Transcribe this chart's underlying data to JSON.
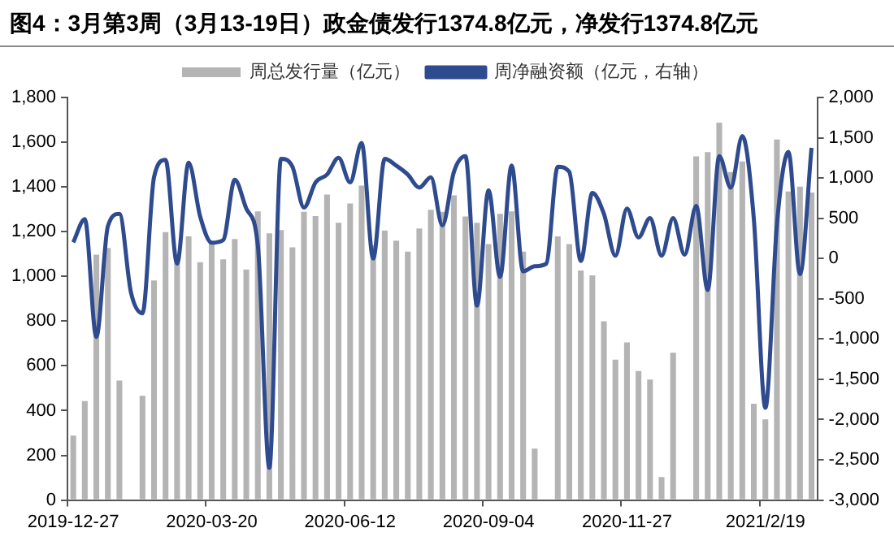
{
  "chart_data": {
    "type": "bar",
    "title": "图4：3月第3周（3月13-19日）政金债发行1374.8亿元，净发行1374.8亿元",
    "categories": [
      "2019-12-27",
      null,
      null,
      null,
      null,
      null,
      null,
      null,
      null,
      null,
      null,
      null,
      "2020-03-20",
      null,
      null,
      null,
      null,
      null,
      null,
      null,
      null,
      null,
      null,
      null,
      "2020-06-12",
      null,
      null,
      null,
      null,
      null,
      null,
      null,
      null,
      null,
      null,
      null,
      "2020-09-04",
      null,
      null,
      null,
      null,
      null,
      null,
      null,
      null,
      null,
      null,
      null,
      "2020-11-27",
      null,
      null,
      null,
      null,
      null,
      null,
      null,
      null,
      null,
      null,
      null,
      "2021/2/19",
      null,
      null,
      null,
      null
    ],
    "series": [
      {
        "name": "周总发行量（亿元）",
        "color": "#b4b4b4",
        "values": [
          288,
          443,
          1097,
          1127,
          534,
          0,
          466,
          982,
          1198,
          1060,
          1179,
          1064,
          1151,
          1076,
          1167,
          1031,
          1291,
          1193,
          1207,
          1130,
          1289,
          1270,
          1366,
          1240,
          1326,
          1406,
          1139,
          1205,
          1160,
          1111,
          1214,
          1298,
          1289,
          1362,
          1268,
          1240,
          1144,
          1280,
          1291,
          1111,
          230,
          0,
          1179,
          1144,
          1026,
          1005,
          799,
          628,
          705,
          577,
          539,
          103,
          659,
          0,
          1537,
          1556,
          1687,
          1467,
          1514,
          431,
          361,
          1612,
          1380,
          1401,
          1375
        ]
      },
      {
        "name": "周净融资额（亿元，右轴）",
        "type": "line",
        "axis": "y2",
        "color": "#2f4b8f",
        "values": [
          200,
          490,
          -975,
          400,
          555,
          -420,
          -680,
          1010,
          1225,
          -64,
          1190,
          522,
          197,
          230,
          978,
          620,
          164,
          -2600,
          1238,
          1140,
          633,
          945,
          1043,
          1250,
          945,
          1434,
          0,
          1238,
          1154,
          1043,
          880,
          1010,
          411,
          1076,
          1270,
          -585,
          848,
          -227,
          1154,
          -160,
          -96,
          -64,
          1140,
          1076,
          -30,
          815,
          555,
          34,
          620,
          262,
          503,
          34,
          503,
          47,
          652,
          -390,
          1270,
          880,
          1520,
          490,
          -1854,
          425,
          1323,
          -194,
          1375
        ]
      }
    ],
    "ylim": [
      0,
      1800
    ],
    "yticks": [
      0,
      200,
      400,
      600,
      800,
      {
        "value": 1000,
        "label": "1,000"
      },
      {
        "value": 1200,
        "label": "1,200"
      },
      {
        "value": 1400,
        "label": "1,400"
      },
      {
        "value": 1600,
        "label": "1,600"
      },
      {
        "value": 1800,
        "label": "1,800"
      }
    ],
    "y2lim": [
      -3000,
      2000
    ],
    "y2ticks": [
      {
        "value": -3000,
        "label": "-3,000"
      },
      {
        "value": -2500,
        "label": "-2,500"
      },
      {
        "value": -2000,
        "label": "-2,000"
      },
      {
        "value": -1500,
        "label": "-1,500"
      },
      {
        "value": -1000,
        "label": "-1,000"
      },
      -500,
      0,
      500,
      {
        "value": 1000,
        "label": "1,000"
      },
      {
        "value": 1500,
        "label": "1,500"
      },
      {
        "value": 2000,
        "label": "2,000"
      }
    ],
    "grid": false,
    "legend": "top"
  }
}
